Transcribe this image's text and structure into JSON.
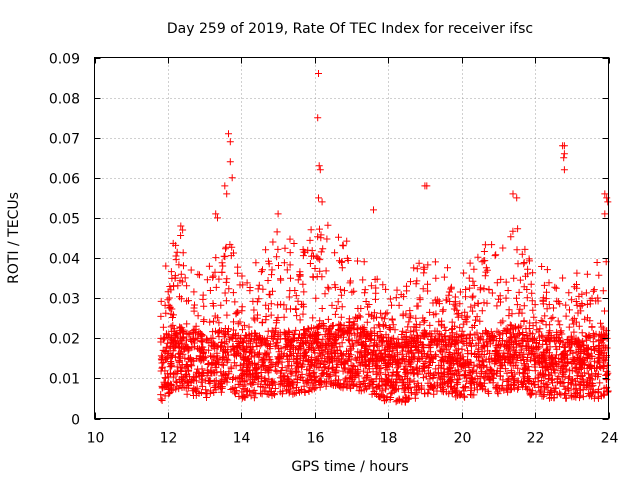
{
  "chart_data": {
    "type": "scatter",
    "title": "Day 259 of 2019, Rate Of TEC Index for receiver ifsc",
    "xlabel": "GPS time / hours",
    "ylabel": "ROTI / TECUs",
    "xlim": [
      10,
      24
    ],
    "ylim": [
      0,
      0.09
    ],
    "xticks": [
      10,
      12,
      14,
      16,
      18,
      20,
      22,
      24
    ],
    "xtick_labels": [
      "10",
      "12",
      "14",
      "16",
      "18",
      "20",
      "22",
      "24"
    ],
    "yticks": [
      0,
      0.01,
      0.02,
      0.03,
      0.04,
      0.05,
      0.06,
      0.07,
      0.08,
      0.09
    ],
    "ytick_labels": [
      "0",
      "0.01",
      "0.02",
      "0.03",
      "0.04",
      "0.05",
      "0.06",
      "0.07",
      "0.08",
      "0.09"
    ],
    "grid": true,
    "legend": "none",
    "marker": "+",
    "color": "#ff0000",
    "x_range_of_data": [
      11.8,
      24.0
    ],
    "notable_peaks": [
      {
        "x": 13.65,
        "y": 0.071
      },
      {
        "x": 13.7,
        "y": 0.069
      },
      {
        "x": 13.7,
        "y": 0.064
      },
      {
        "x": 13.55,
        "y": 0.058
      },
      {
        "x": 13.6,
        "y": 0.056
      },
      {
        "x": 13.75,
        "y": 0.06
      },
      {
        "x": 13.3,
        "y": 0.051
      },
      {
        "x": 13.35,
        "y": 0.05
      },
      {
        "x": 16.1,
        "y": 0.086
      },
      {
        "x": 16.08,
        "y": 0.075
      },
      {
        "x": 16.12,
        "y": 0.063
      },
      {
        "x": 16.15,
        "y": 0.062
      },
      {
        "x": 16.1,
        "y": 0.055
      },
      {
        "x": 16.2,
        "y": 0.054
      },
      {
        "x": 15.0,
        "y": 0.051
      },
      {
        "x": 17.6,
        "y": 0.052
      },
      {
        "x": 19.0,
        "y": 0.058
      },
      {
        "x": 19.05,
        "y": 0.058
      },
      {
        "x": 21.4,
        "y": 0.056
      },
      {
        "x": 21.5,
        "y": 0.055
      },
      {
        "x": 22.75,
        "y": 0.068
      },
      {
        "x": 22.8,
        "y": 0.068
      },
      {
        "x": 22.8,
        "y": 0.066
      },
      {
        "x": 22.78,
        "y": 0.065
      },
      {
        "x": 22.8,
        "y": 0.062
      },
      {
        "x": 23.9,
        "y": 0.056
      },
      {
        "x": 23.95,
        "y": 0.055
      },
      {
        "x": 23.98,
        "y": 0.054
      },
      {
        "x": 23.9,
        "y": 0.051
      },
      {
        "x": 12.35,
        "y": 0.048
      },
      {
        "x": 12.4,
        "y": 0.047
      }
    ],
    "envelope": [
      {
        "x": 11.8,
        "base": 0.012,
        "peak": 0.025
      },
      {
        "x": 12.0,
        "base": 0.014,
        "peak": 0.034
      },
      {
        "x": 12.3,
        "base": 0.015,
        "peak": 0.04
      },
      {
        "x": 12.5,
        "base": 0.014,
        "peak": 0.03
      },
      {
        "x": 13.0,
        "base": 0.013,
        "peak": 0.028
      },
      {
        "x": 13.3,
        "base": 0.014,
        "peak": 0.036
      },
      {
        "x": 13.6,
        "base": 0.015,
        "peak": 0.04
      },
      {
        "x": 14.0,
        "base": 0.013,
        "peak": 0.028
      },
      {
        "x": 14.5,
        "base": 0.013,
        "peak": 0.032
      },
      {
        "x": 15.0,
        "base": 0.014,
        "peak": 0.04
      },
      {
        "x": 15.5,
        "base": 0.014,
        "peak": 0.036
      },
      {
        "x": 16.0,
        "base": 0.015,
        "peak": 0.04
      },
      {
        "x": 16.5,
        "base": 0.016,
        "peak": 0.042
      },
      {
        "x": 17.0,
        "base": 0.015,
        "peak": 0.036
      },
      {
        "x": 17.5,
        "base": 0.014,
        "peak": 0.03
      },
      {
        "x": 18.0,
        "base": 0.012,
        "peak": 0.024
      },
      {
        "x": 18.5,
        "base": 0.012,
        "peak": 0.026
      },
      {
        "x": 19.0,
        "base": 0.014,
        "peak": 0.036
      },
      {
        "x": 19.5,
        "base": 0.014,
        "peak": 0.034
      },
      {
        "x": 20.0,
        "base": 0.013,
        "peak": 0.032
      },
      {
        "x": 20.5,
        "base": 0.014,
        "peak": 0.036
      },
      {
        "x": 21.0,
        "base": 0.014,
        "peak": 0.036
      },
      {
        "x": 21.5,
        "base": 0.015,
        "peak": 0.04
      },
      {
        "x": 22.0,
        "base": 0.013,
        "peak": 0.03
      },
      {
        "x": 22.5,
        "base": 0.013,
        "peak": 0.03
      },
      {
        "x": 23.0,
        "base": 0.013,
        "peak": 0.028
      },
      {
        "x": 23.5,
        "base": 0.013,
        "peak": 0.03
      },
      {
        "x": 24.0,
        "base": 0.013,
        "peak": 0.034
      }
    ]
  }
}
